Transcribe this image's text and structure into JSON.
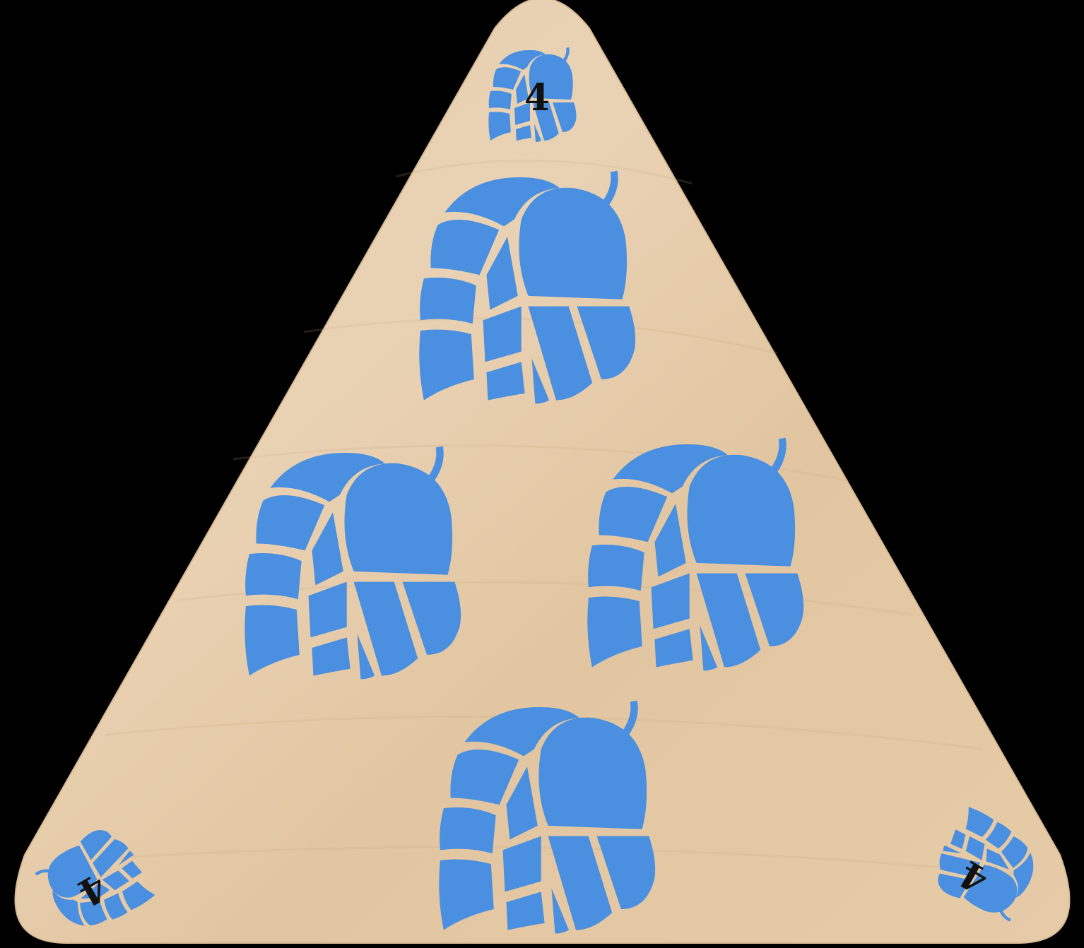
{
  "card": {
    "shape": "rounded-triangle",
    "material": "wood",
    "suit": "hop-cone-icon",
    "suit_color": "#4A8FE0",
    "wood_color": "#E3C8A4",
    "background_color": "#000000",
    "value": "4",
    "pip_count": 4,
    "corners": [
      {
        "name": "top",
        "value": "4"
      },
      {
        "name": "bottom-left",
        "value": "4"
      },
      {
        "name": "bottom-right",
        "value": "4"
      }
    ]
  }
}
